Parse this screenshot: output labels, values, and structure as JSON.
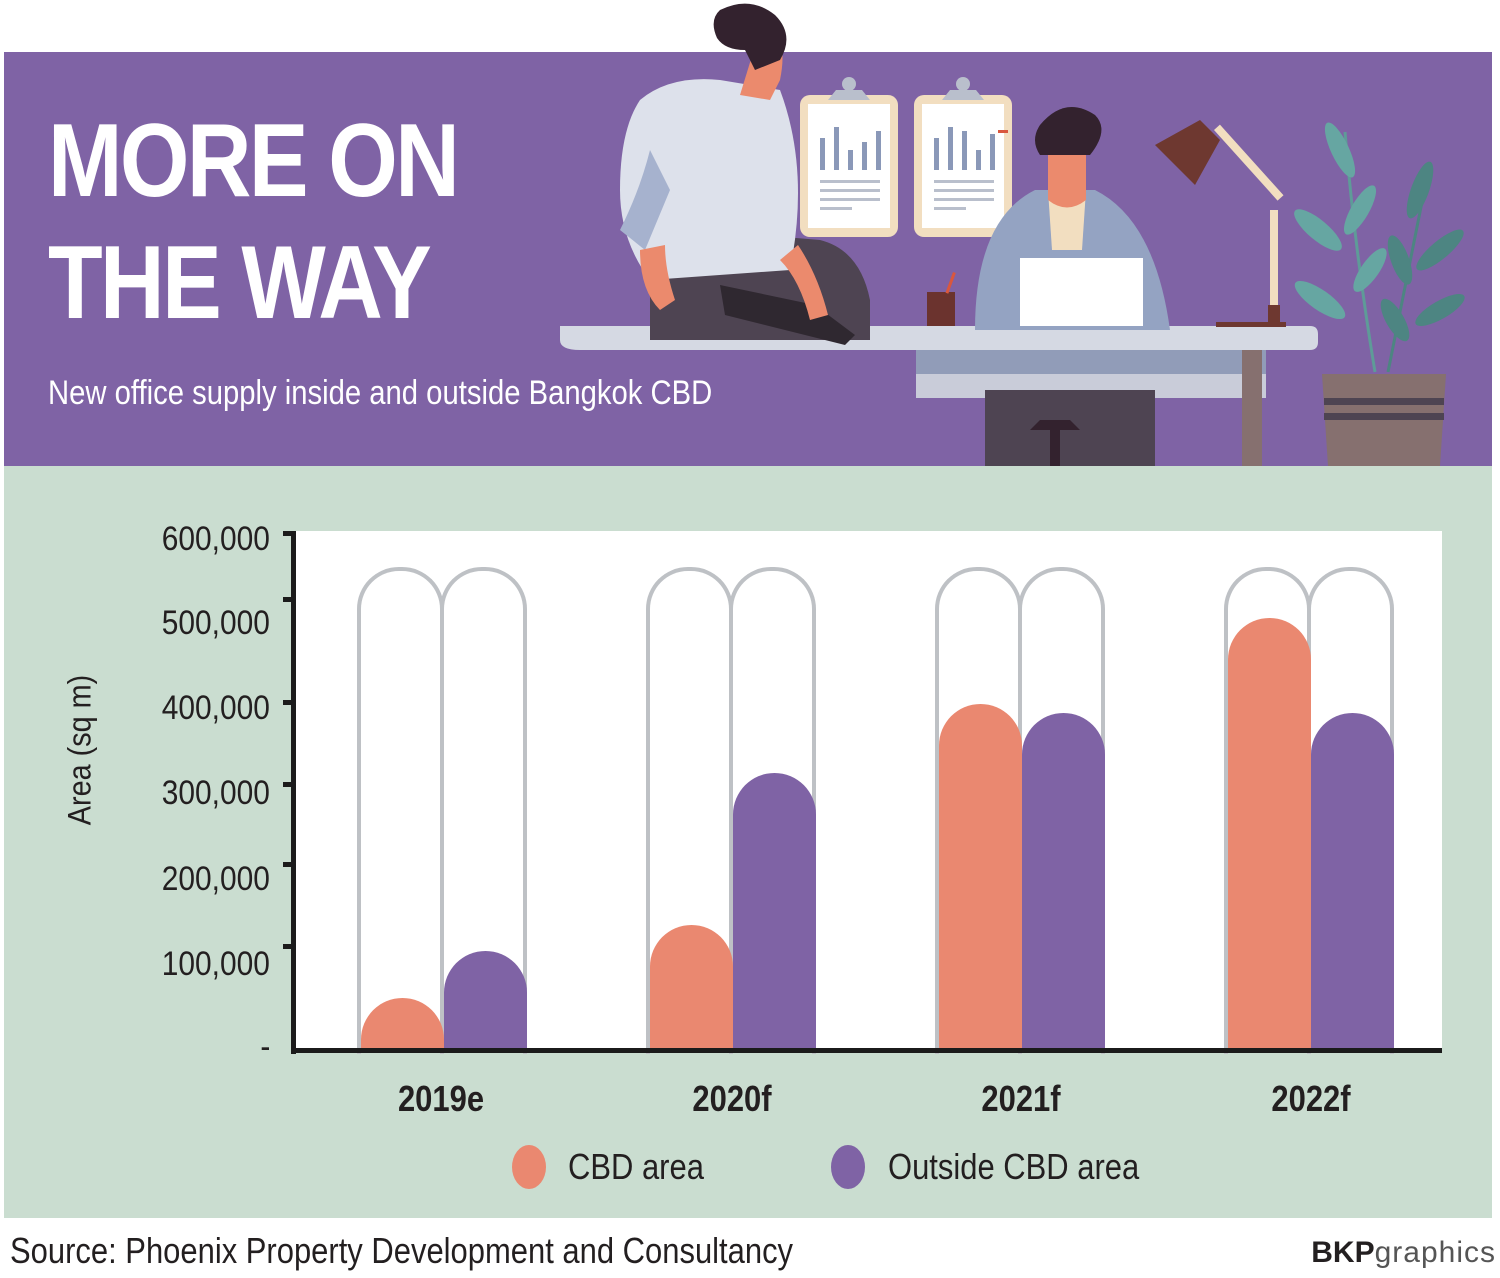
{
  "header": {
    "title_line1": "MORE ON",
    "title_line2": "THE WAY",
    "subtitle": "New office supply inside and outside Bangkok CBD",
    "bg_color": "#7F63A5"
  },
  "colors": {
    "cbd": "#EA8870",
    "outside": "#7F63A5",
    "panel_bg": "#CADDD0",
    "capsule_outline": "#BEC1C5"
  },
  "axis": {
    "ylabel": "Area (sq m)",
    "ticks": [
      "600,000",
      "500,000",
      "400,000",
      "300,000",
      "200,000",
      "100,000",
      "-"
    ]
  },
  "legend": {
    "cbd_label": "CBD area",
    "outside_label": "Outside CBD area"
  },
  "footer": {
    "source": "Source: Phoenix Property Development and Consultancy",
    "credit_bold": "BKP",
    "credit_light": "graphics"
  },
  "chart_data": {
    "type": "bar",
    "title": "MORE ON THE WAY",
    "subtitle": "New office supply inside and outside Bangkok CBD",
    "xlabel": "",
    "ylabel": "Area (sq m)",
    "ylim": [
      0,
      600000
    ],
    "yticks": [
      0,
      100000,
      200000,
      300000,
      400000,
      500000,
      600000
    ],
    "categories": [
      "2019e",
      "2020f",
      "2021f",
      "2022f"
    ],
    "series": [
      {
        "name": "CBD area",
        "color": "#EA8870",
        "values": [
          60000,
          145000,
          400000,
          500000
        ]
      },
      {
        "name": "Outside CBD area",
        "color": "#7F63A5",
        "values": [
          115000,
          320000,
          390000,
          390000
        ]
      }
    ],
    "legend_position": "bottom",
    "grid": false,
    "source": "Phoenix Property Development and Consultancy"
  }
}
